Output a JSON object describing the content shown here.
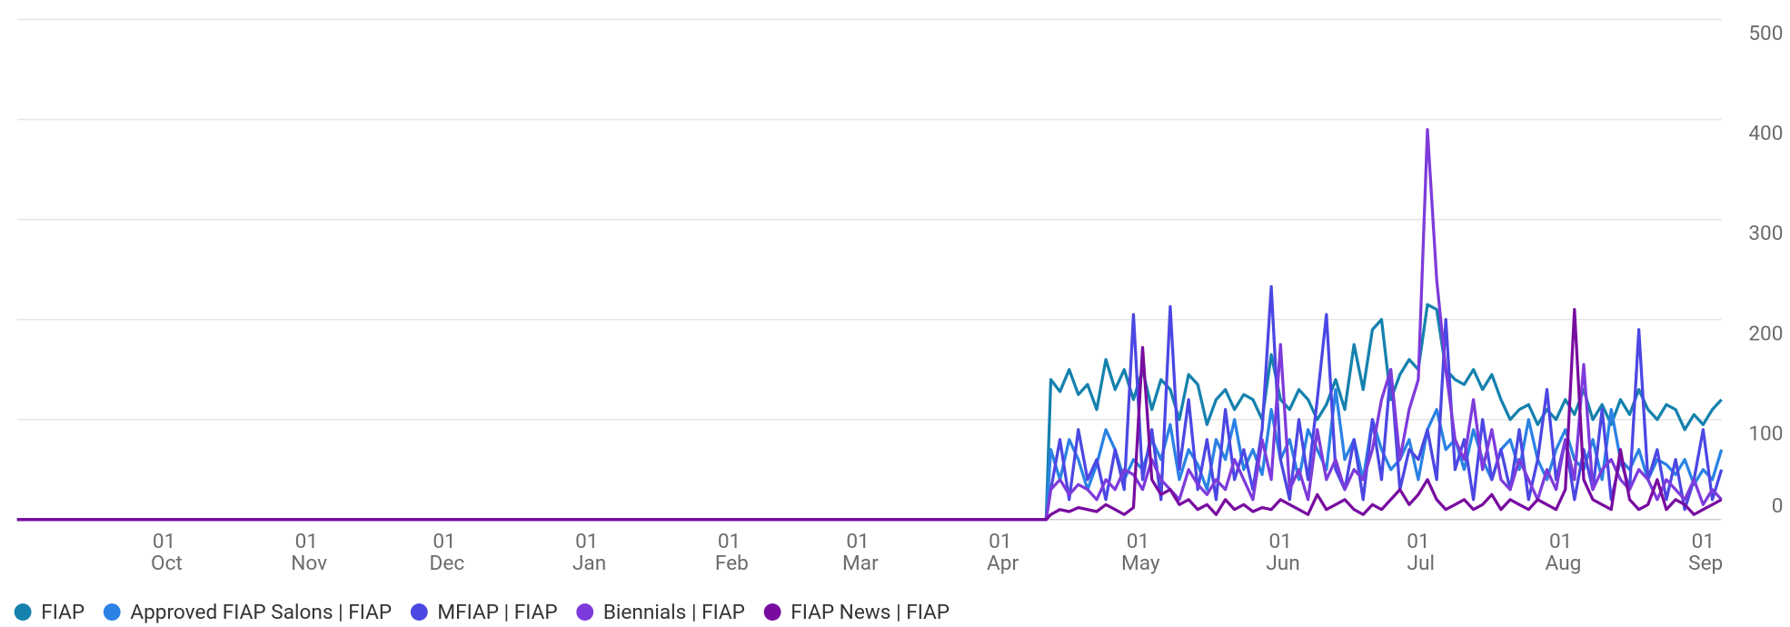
{
  "chart_data": {
    "type": "line",
    "x": [
      -32,
      192,
      193,
      195,
      197,
      199,
      201,
      203,
      205,
      207,
      209,
      211,
      213,
      215,
      217,
      219,
      221,
      223,
      225,
      227,
      229,
      231,
      233,
      235,
      237,
      239,
      241,
      243,
      245,
      247,
      249,
      251,
      253,
      255,
      257,
      259,
      261,
      263,
      265,
      267,
      269,
      271,
      273,
      275,
      277,
      279,
      281,
      283,
      285,
      287,
      289,
      291,
      293,
      295,
      297,
      299,
      301,
      303,
      305,
      307,
      309,
      311,
      313,
      315,
      317,
      319,
      321,
      323,
      325,
      327,
      329,
      331,
      333,
      335,
      337,
      339
    ],
    "xlim": [
      -32,
      339
    ],
    "xticks": [
      {
        "value": 0,
        "label": "01 Oct"
      },
      {
        "value": 31,
        "label": "01 Nov"
      },
      {
        "value": 61,
        "label": "01 Dec"
      },
      {
        "value": 92,
        "label": "01 Jan"
      },
      {
        "value": 123,
        "label": "01 Feb"
      },
      {
        "value": 151,
        "label": "01 Mar"
      },
      {
        "value": 182,
        "label": "01 Apr"
      },
      {
        "value": 212,
        "label": "01 May"
      },
      {
        "value": 243,
        "label": "01 Jun"
      },
      {
        "value": 273,
        "label": "01 Jul"
      },
      {
        "value": 304,
        "label": "01 Aug"
      },
      {
        "value": 335,
        "label": "01 Sep"
      }
    ],
    "ylim": [
      0,
      500
    ],
    "yticks": [
      0,
      100,
      200,
      300,
      400,
      500
    ],
    "grid": true,
    "legend": "bottom",
    "series": [
      {
        "name": "FIAP",
        "color": "#1581ad",
        "values": [
          0,
          0,
          140,
          128,
          150,
          125,
          135,
          110,
          160,
          130,
          150,
          120,
          150,
          110,
          140,
          130,
          100,
          145,
          135,
          95,
          120,
          130,
          110,
          125,
          120,
          100,
          165,
          120,
          110,
          130,
          120,
          100,
          115,
          140,
          110,
          175,
          130,
          190,
          200,
          120,
          145,
          160,
          150,
          215,
          210,
          150,
          140,
          135,
          150,
          130,
          145,
          120,
          100,
          110,
          115,
          95,
          110,
          100,
          120,
          105,
          130,
          100,
          115,
          95,
          120,
          105,
          130,
          110,
          100,
          115,
          110,
          90,
          105,
          95,
          110,
          120
        ]
      },
      {
        "name": "Approved FIAP Salons | FIAP",
        "color": "#2a82e4",
        "values": [
          0,
          0,
          70,
          40,
          80,
          60,
          30,
          55,
          90,
          70,
          40,
          60,
          50,
          80,
          60,
          95,
          40,
          70,
          55,
          30,
          80,
          60,
          100,
          50,
          70,
          45,
          110,
          60,
          80,
          40,
          90,
          70,
          50,
          130,
          60,
          80,
          40,
          100,
          70,
          50,
          60,
          80,
          40,
          90,
          110,
          70,
          80,
          50,
          90,
          60,
          40,
          70,
          80,
          50,
          100,
          60,
          40,
          70,
          90,
          60,
          50,
          80,
          40,
          110,
          60,
          50,
          70,
          40,
          60,
          55,
          45,
          60,
          35,
          50,
          40,
          70
        ]
      },
      {
        "name": "MFIAP | FIAP",
        "color": "#4b47e3",
        "values": [
          0,
          0,
          30,
          80,
          20,
          90,
          40,
          60,
          20,
          70,
          30,
          205,
          40,
          90,
          20,
          213,
          50,
          120,
          30,
          80,
          20,
          110,
          40,
          70,
          30,
          90,
          233,
          60,
          20,
          100,
          40,
          120,
          205,
          50,
          30,
          80,
          20,
          100,
          40,
          150,
          30,
          70,
          60,
          90,
          40,
          200,
          50,
          80,
          20,
          100,
          40,
          70,
          30,
          90,
          20,
          60,
          130,
          40,
          80,
          20,
          70,
          30,
          110,
          20,
          60,
          30,
          190,
          40,
          70,
          20,
          60,
          10,
          40,
          90,
          20,
          50
        ]
      },
      {
        "name": "Biennials | FIAP",
        "color": "#7d3bdb",
        "values": [
          0,
          0,
          30,
          40,
          25,
          35,
          30,
          20,
          40,
          30,
          50,
          45,
          30,
          60,
          40,
          30,
          20,
          50,
          35,
          25,
          40,
          30,
          60,
          40,
          20,
          80,
          40,
          175,
          30,
          50,
          20,
          90,
          40,
          60,
          30,
          50,
          40,
          70,
          120,
          150,
          60,
          110,
          140,
          390,
          240,
          150,
          80,
          60,
          120,
          50,
          90,
          40,
          30,
          60,
          40,
          20,
          50,
          30,
          80,
          40,
          155,
          30,
          50,
          60,
          40,
          30,
          50,
          40,
          20,
          40,
          30,
          20,
          40,
          15,
          30,
          20
        ]
      },
      {
        "name": "FIAP News | FIAP",
        "color": "#780ca0",
        "values": [
          0,
          0,
          5,
          10,
          8,
          12,
          10,
          8,
          15,
          10,
          5,
          12,
          172,
          40,
          25,
          30,
          15,
          20,
          10,
          15,
          5,
          20,
          10,
          15,
          8,
          12,
          10,
          20,
          15,
          10,
          5,
          25,
          10,
          15,
          20,
          10,
          5,
          15,
          10,
          20,
          30,
          15,
          25,
          40,
          20,
          10,
          15,
          20,
          10,
          15,
          25,
          10,
          20,
          15,
          10,
          20,
          15,
          10,
          30,
          210,
          40,
          20,
          15,
          10,
          70,
          20,
          10,
          15,
          40,
          10,
          20,
          15,
          5,
          10,
          15,
          20
        ]
      }
    ]
  }
}
